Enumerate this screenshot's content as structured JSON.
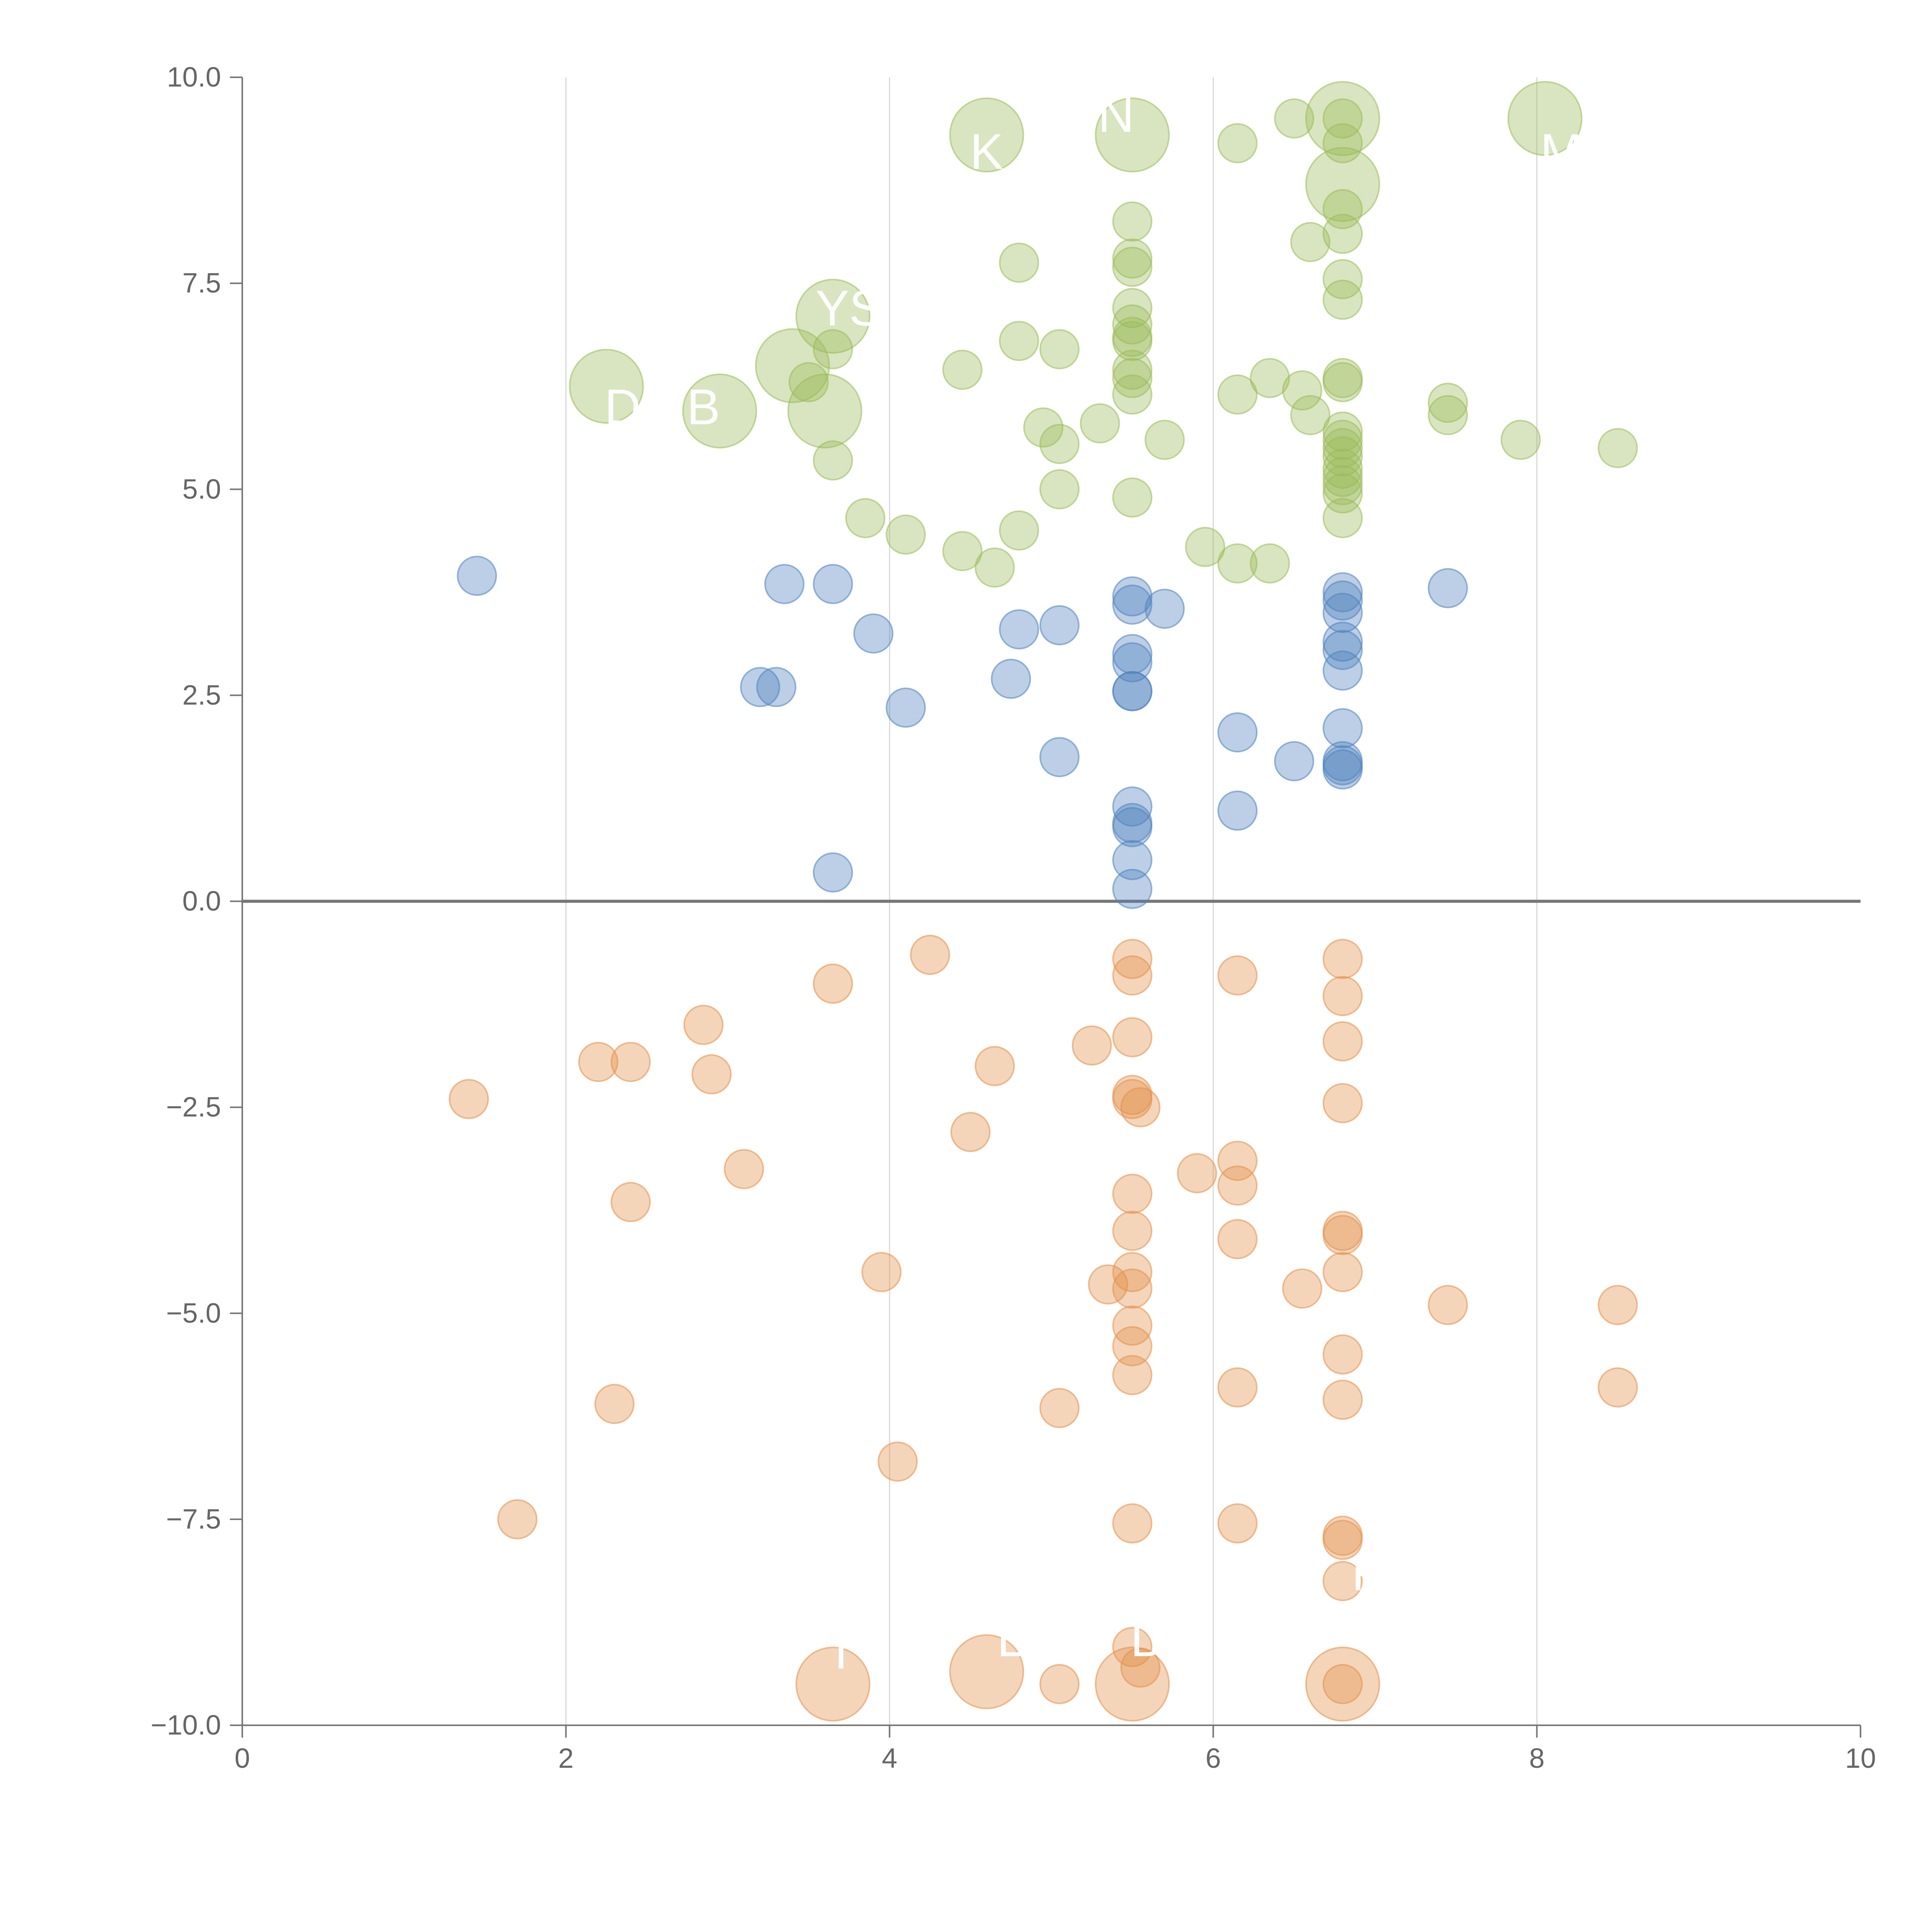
{
  "chart_data": {
    "type": "scatter",
    "title": "",
    "xlabel": "",
    "ylabel": "",
    "xlim": [
      0,
      10
    ],
    "ylim": [
      -10,
      10
    ],
    "x_ticks": [
      "0",
      "2",
      "4",
      "6",
      "8",
      "10"
    ],
    "y_ticks": [
      "10.0",
      "7.5",
      "5.0",
      "2.5",
      "0.0",
      "−2.5",
      "−5.0",
      "−7.5",
      "−10.0"
    ],
    "x_tick_values": [
      0,
      2,
      4,
      6,
      8,
      10
    ],
    "y_tick_values": [
      10,
      7.5,
      5,
      2.5,
      0,
      -2.5,
      -5,
      -7.5,
      -10
    ],
    "vertical_grid": [
      2,
      4,
      6,
      8
    ],
    "zero_line": 0,
    "colors": {
      "green": "#9bbb59",
      "blue": "#4f81bd",
      "orange": "#e3904a",
      "axis": "#777777",
      "grid": "#d9d9d9",
      "text": "#666666"
    },
    "series": [
      {
        "name": "green",
        "points": [
          [
            4.6,
            9.3,
            2
          ],
          [
            5.5,
            9.3,
            2
          ],
          [
            6.5,
            9.5,
            1
          ],
          [
            6.8,
            9.5,
            2
          ],
          [
            6.8,
            9.5,
            1
          ],
          [
            8.05,
            9.5,
            2
          ],
          [
            6.15,
            9.2,
            1
          ],
          [
            6.8,
            9.2,
            1
          ],
          [
            6.8,
            8.7,
            2
          ],
          [
            6.8,
            8.4,
            1
          ],
          [
            5.5,
            8.25,
            1
          ],
          [
            6.8,
            8.1,
            1
          ],
          [
            6.6,
            8.0,
            1
          ],
          [
            4.8,
            7.75,
            1
          ],
          [
            5.5,
            7.8,
            1
          ],
          [
            5.5,
            7.7,
            1
          ],
          [
            6.8,
            7.55,
            1
          ],
          [
            6.8,
            7.3,
            1
          ],
          [
            5.5,
            7.2,
            1
          ],
          [
            3.65,
            7.1,
            2
          ],
          [
            5.5,
            7.0,
            1
          ],
          [
            5.5,
            6.85,
            1
          ],
          [
            4.8,
            6.8,
            1
          ],
          [
            5.5,
            6.8,
            1
          ],
          [
            3.65,
            6.7,
            1
          ],
          [
            5.05,
            6.7,
            1
          ],
          [
            3.4,
            6.5,
            2
          ],
          [
            4.45,
            6.45,
            1
          ],
          [
            5.5,
            6.45,
            1
          ],
          [
            5.5,
            6.35,
            1
          ],
          [
            6.35,
            6.35,
            1
          ],
          [
            6.8,
            6.35,
            1
          ],
          [
            6.8,
            6.3,
            1
          ],
          [
            3.5,
            6.3,
            1
          ],
          [
            2.25,
            6.25,
            2
          ],
          [
            6.55,
            6.2,
            1
          ],
          [
            5.5,
            6.15,
            1
          ],
          [
            6.15,
            6.15,
            1
          ],
          [
            7.45,
            6.05,
            1
          ],
          [
            2.95,
            5.95,
            2
          ],
          [
            3.6,
            5.95,
            2
          ],
          [
            6.6,
            5.9,
            1
          ],
          [
            7.45,
            5.9,
            1
          ],
          [
            5.3,
            5.8,
            1
          ],
          [
            4.95,
            5.75,
            1
          ],
          [
            6.8,
            5.7,
            1
          ],
          [
            5.7,
            5.6,
            1
          ],
          [
            7.9,
            5.6,
            1
          ],
          [
            6.8,
            5.6,
            1
          ],
          [
            5.05,
            5.55,
            1
          ],
          [
            6.8,
            5.5,
            1
          ],
          [
            8.5,
            5.5,
            1
          ],
          [
            6.8,
            5.4,
            1
          ],
          [
            3.65,
            5.35,
            1
          ],
          [
            6.8,
            5.25,
            1
          ],
          [
            6.8,
            5.15,
            1
          ],
          [
            5.05,
            5.0,
            1
          ],
          [
            6.8,
            5.05,
            1
          ],
          [
            6.8,
            4.95,
            1
          ],
          [
            5.5,
            4.9,
            1
          ],
          [
            3.85,
            4.65,
            1
          ],
          [
            6.8,
            4.65,
            1
          ],
          [
            4.8,
            4.5,
            1
          ],
          [
            4.1,
            4.45,
            1
          ],
          [
            5.95,
            4.3,
            1
          ],
          [
            4.45,
            4.25,
            1
          ],
          [
            6.15,
            4.1,
            1
          ],
          [
            6.35,
            4.1,
            1
          ],
          [
            4.65,
            4.05,
            1
          ]
        ]
      },
      {
        "name": "blue",
        "points": [
          [
            1.45,
            3.95,
            1
          ],
          [
            3.35,
            3.85,
            1
          ],
          [
            3.65,
            3.85,
            1
          ],
          [
            7.45,
            3.8,
            1
          ],
          [
            6.8,
            3.75,
            1
          ],
          [
            5.5,
            3.7,
            1
          ],
          [
            5.5,
            3.6,
            1
          ],
          [
            6.8,
            3.65,
            1
          ],
          [
            5.7,
            3.55,
            1
          ],
          [
            6.8,
            3.5,
            1
          ],
          [
            5.05,
            3.35,
            1
          ],
          [
            4.8,
            3.3,
            1
          ],
          [
            3.9,
            3.25,
            1
          ],
          [
            6.8,
            3.15,
            1
          ],
          [
            5.5,
            3.0,
            1
          ],
          [
            6.8,
            3.05,
            1
          ],
          [
            5.5,
            2.9,
            1
          ],
          [
            6.8,
            2.8,
            1
          ],
          [
            4.75,
            2.7,
            1
          ],
          [
            3.2,
            2.6,
            1
          ],
          [
            3.3,
            2.6,
            1
          ],
          [
            5.5,
            2.55,
            1
          ],
          [
            5.5,
            2.55,
            1
          ],
          [
            4.1,
            2.35,
            1
          ],
          [
            6.8,
            2.1,
            1
          ],
          [
            6.15,
            2.05,
            1
          ],
          [
            5.05,
            1.75,
            1
          ],
          [
            6.5,
            1.7,
            1
          ],
          [
            6.8,
            1.7,
            1
          ],
          [
            6.8,
            1.6,
            1
          ],
          [
            6.8,
            1.65,
            1
          ],
          [
            5.5,
            1.15,
            1
          ],
          [
            6.15,
            1.1,
            1
          ],
          [
            5.5,
            0.95,
            1
          ],
          [
            5.5,
            0.9,
            1
          ],
          [
            5.5,
            0.5,
            1
          ],
          [
            3.65,
            0.35,
            1
          ],
          [
            5.5,
            0.15,
            1
          ]
        ]
      },
      {
        "name": "orange",
        "points": [
          [
            4.25,
            -0.65,
            1
          ],
          [
            5.5,
            -0.7,
            1
          ],
          [
            6.8,
            -0.7,
            1
          ],
          [
            5.5,
            -0.9,
            1
          ],
          [
            6.15,
            -0.9,
            1
          ],
          [
            3.65,
            -1.0,
            1
          ],
          [
            6.8,
            -1.15,
            1
          ],
          [
            2.85,
            -1.5,
            1
          ],
          [
            5.5,
            -1.65,
            1
          ],
          [
            6.8,
            -1.7,
            1
          ],
          [
            5.25,
            -1.75,
            1
          ],
          [
            2.2,
            -1.95,
            1
          ],
          [
            2.4,
            -1.95,
            1
          ],
          [
            4.65,
            -2.0,
            1
          ],
          [
            2.9,
            -2.1,
            1
          ],
          [
            5.5,
            -2.35,
            1
          ],
          [
            1.4,
            -2.4,
            1
          ],
          [
            5.5,
            -2.4,
            1
          ],
          [
            6.8,
            -2.45,
            1
          ],
          [
            5.55,
            -2.5,
            1
          ],
          [
            4.5,
            -2.8,
            1
          ],
          [
            6.15,
            -3.15,
            1
          ],
          [
            3.1,
            -3.25,
            1
          ],
          [
            5.9,
            -3.3,
            1
          ],
          [
            6.15,
            -3.45,
            1
          ],
          [
            5.5,
            -3.55,
            1
          ],
          [
            2.4,
            -3.65,
            1
          ],
          [
            6.8,
            -4.0,
            1
          ],
          [
            5.5,
            -4.0,
            1
          ],
          [
            6.8,
            -4.05,
            1
          ],
          [
            6.15,
            -4.1,
            1
          ],
          [
            3.95,
            -4.5,
            1
          ],
          [
            5.5,
            -4.5,
            1
          ],
          [
            6.8,
            -4.5,
            1
          ],
          [
            5.35,
            -4.65,
            1
          ],
          [
            5.5,
            -4.7,
            1
          ],
          [
            6.55,
            -4.7,
            1
          ],
          [
            8.5,
            -4.9,
            1
          ],
          [
            7.45,
            -4.9,
            1
          ],
          [
            5.5,
            -5.15,
            1
          ],
          [
            5.5,
            -5.4,
            1
          ],
          [
            6.8,
            -5.5,
            1
          ],
          [
            5.5,
            -5.75,
            1
          ],
          [
            8.5,
            -5.9,
            1
          ],
          [
            6.15,
            -5.9,
            1
          ],
          [
            6.8,
            -6.05,
            1
          ],
          [
            2.3,
            -6.1,
            1
          ],
          [
            5.05,
            -6.15,
            1
          ],
          [
            4.05,
            -6.8,
            1
          ],
          [
            1.7,
            -7.5,
            1
          ],
          [
            5.5,
            -7.55,
            1
          ],
          [
            6.15,
            -7.55,
            1
          ],
          [
            6.8,
            -7.7,
            1
          ],
          [
            6.8,
            -7.75,
            1
          ],
          [
            6.8,
            -8.25,
            1
          ],
          [
            5.5,
            -9.05,
            1
          ],
          [
            5.55,
            -9.3,
            1
          ],
          [
            4.6,
            -9.35,
            2
          ],
          [
            3.65,
            -9.5,
            2
          ],
          [
            5.05,
            -9.5,
            1
          ],
          [
            5.5,
            -9.5,
            2
          ],
          [
            6.8,
            -9.5,
            2
          ],
          [
            6.8,
            -9.5,
            1
          ]
        ]
      }
    ],
    "annotations": [
      {
        "text": "K",
        "x": 4.6,
        "y": 9.1
      },
      {
        "text": "N",
        "x": 5.4,
        "y": 9.55
      },
      {
        "text": "M",
        "x": 8.15,
        "y": 9.1
      },
      {
        "text": "YS",
        "x": 3.75,
        "y": 7.2
      },
      {
        "text": "D",
        "x": 2.35,
        "y": 6.0
      },
      {
        "text": "B",
        "x": 2.85,
        "y": 6.0
      },
      {
        "text": "I",
        "x": 3.7,
        "y": -9.1
      },
      {
        "text": "L",
        "x": 4.75,
        "y": -8.95
      },
      {
        "text": "D",
        "x": 5.6,
        "y": -8.95
      },
      {
        "text": "F",
        "x": 6.95,
        "y": -8.15
      }
    ]
  }
}
